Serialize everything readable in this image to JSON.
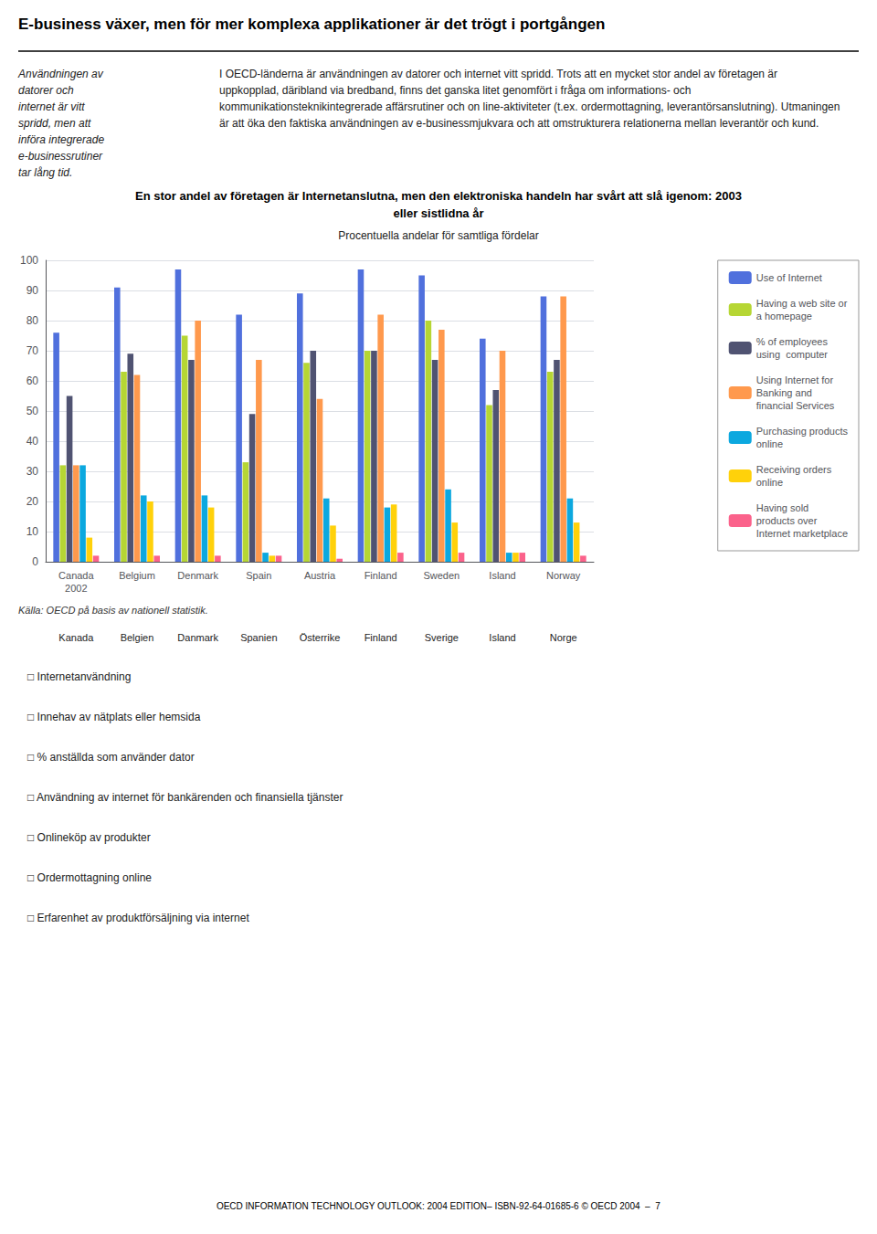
{
  "chart_data": {
    "type": "bar",
    "title": "E-business växer, men för mer komplexa applikationer är det trögt i portgången",
    "intro": "Användningen av\ndatorer och\ninternet är vitt\nspridd, men att\ninföra integrerade\ne-businessrutiner\ntar lång tid.",
    "text": "I OECD-länderna är användningen av datorer och internet vitt spridd. Trots att en mycket stor andel av företagen är uppkopplad, däribland via bredband, finns det ganska litet genomfört i fråga om informations- och kommunikationsteknikintegrerade affärsrutiner och on line-aktiviteter (t.ex. ordermottagning, leverantörsanslutning). Utmaningen är att öka den faktiska användningen av e-businessmjukvara och att omstrukturera relationerna mellan leverantör och kund.",
    "chart_title": [
      "En stor andel av företagen är Internetanslutna, men den elektroniska handeln har svårt att slå igenom: 2003",
      "eller sistlidna år"
    ],
    "subtitle": "Procentuella andelar för samtliga fördelar",
    "categories": [
      "Canada\n2002",
      "Belgium",
      "Denmark",
      "Spain",
      "Austria",
      "Finland",
      "Sweden",
      "Island",
      "Norway"
    ],
    "series": [
      {
        "name": "Use of Internet",
        "values": [
          76,
          91,
          97,
          82,
          89,
          97,
          95,
          74,
          88
        ]
      },
      {
        "name": "Having a web site or\na homepage",
        "values": [
          32,
          63,
          75,
          33,
          66,
          70,
          80,
          52,
          63
        ]
      },
      {
        "name": "% of employees\nusing  computer",
        "values": [
          55,
          69,
          67,
          49,
          70,
          70,
          67,
          57,
          67
        ]
      },
      {
        "name": "Using Internet for\nBanking and\nfinancial Services",
        "values": [
          32,
          62,
          80,
          67,
          54,
          82,
          77,
          70,
          88
        ]
      },
      {
        "name": "Purchasing products\nonline",
        "values": [
          32,
          22,
          22,
          3,
          21,
          18,
          24,
          3,
          21
        ]
      },
      {
        "name": "Receiving orders\nonline",
        "values": [
          8,
          20,
          18,
          2,
          12,
          19,
          13,
          3,
          13
        ]
      },
      {
        "name": "Having sold\nproducts over\nInternet marketplace",
        "values": [
          2,
          2,
          2,
          2,
          1,
          3,
          3,
          3,
          2
        ]
      }
    ],
    "ylim": [
      0,
      100
    ],
    "yticks": [
      0,
      10,
      20,
      30,
      40,
      50,
      60,
      70,
      80,
      90,
      100
    ],
    "grid": true,
    "legend": "right",
    "source": "Källa: OECD på basis av nationell statistik.",
    "country_row": [
      "Kanada",
      "Belgien",
      "Danmark",
      "Spanien",
      "Österrike",
      "Finland",
      "Sverige",
      "Island",
      "Norge"
    ],
    "notes": [
      "□ Internetanvändning",
      "□ Innehav av nätplats eller hemsida",
      "□ % anställda som använder dator",
      "□ Användning av internet för bankärenden och finansiella tjänster",
      "□ Onlineköp av produkter",
      "□ Ordermottagning online",
      "□ Erfarenhet av produktförsäljning via internet"
    ],
    "footer": "OECD INFORMATION TECHNOLOGY OUTLOOK: 2004 EDITION– ISBN-92-64-01685-6 © OECD 2004  –  7"
  }
}
